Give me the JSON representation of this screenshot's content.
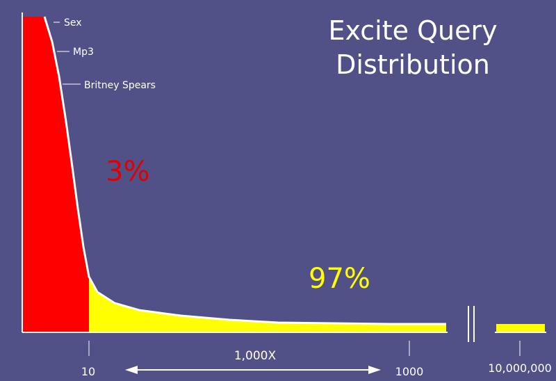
{
  "title": {
    "line1": "Excite Query",
    "line2": "Distribution"
  },
  "annotations": {
    "head_percent": "3%",
    "tail_percent": "97%",
    "ratio_label": "1,000X"
  },
  "colors": {
    "background": "#515188",
    "head_fill": "#ff0000",
    "tail_fill": "#ffff00",
    "curve": "#ffffff",
    "head_text": "#e00000",
    "tail_text": "#ffff00",
    "axis": "#ffffff"
  },
  "chart_data": {
    "type": "area",
    "title": "Excite Query Distribution",
    "xlabel": "",
    "ylabel": "",
    "x_ticks": [
      "10",
      "1000",
      "10,000,000"
    ],
    "head_queries": [
      "Sex",
      "Mp3",
      "Britney Spears"
    ],
    "regions": [
      {
        "label": "3%",
        "x_range": [
          0,
          10
        ],
        "color": "#ff0000"
      },
      {
        "label": "97%",
        "x_range": [
          10,
          10000000
        ],
        "color": "#ffff00"
      }
    ],
    "axis_break": true,
    "grid": false,
    "legend": "none"
  }
}
